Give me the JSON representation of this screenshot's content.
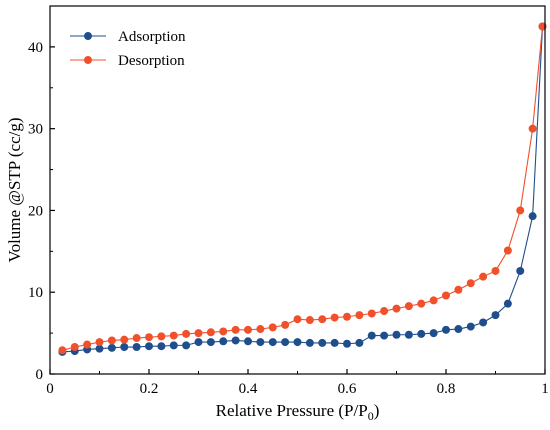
{
  "chart_data": {
    "type": "line",
    "title": "",
    "xlabel": "Relative Pressure (P/P",
    "xlabel_sub": "0",
    "xlabel_end": ")",
    "ylabel": "Volume @STP (cc/g)",
    "xlim": [
      0,
      1
    ],
    "ylim": [
      0,
      45
    ],
    "x_ticks": [
      0,
      0.2,
      0.4,
      0.6,
      0.8,
      1
    ],
    "x_tick_labels": [
      "0",
      "0.2",
      "0.4",
      "0.6",
      "0.8",
      "1"
    ],
    "y_ticks": [
      0,
      10,
      20,
      30,
      40
    ],
    "y_tick_labels": [
      "0",
      "10",
      "20",
      "30",
      "40"
    ],
    "grid": false,
    "legend_position": "top-left",
    "series": [
      {
        "name": "Adsorption",
        "color": "#1f4e8c",
        "points": [
          [
            0.025,
            2.7
          ],
          [
            0.05,
            2.8
          ],
          [
            0.075,
            3.0
          ],
          [
            0.1,
            3.1
          ],
          [
            0.125,
            3.2
          ],
          [
            0.15,
            3.3
          ],
          [
            0.175,
            3.3
          ],
          [
            0.2,
            3.4
          ],
          [
            0.225,
            3.4
          ],
          [
            0.25,
            3.5
          ],
          [
            0.275,
            3.5
          ],
          [
            0.3,
            3.9
          ],
          [
            0.325,
            3.9
          ],
          [
            0.35,
            4.0
          ],
          [
            0.375,
            4.1
          ],
          [
            0.4,
            4.0
          ],
          [
            0.425,
            3.9
          ],
          [
            0.45,
            3.9
          ],
          [
            0.475,
            3.9
          ],
          [
            0.5,
            3.9
          ],
          [
            0.525,
            3.8
          ],
          [
            0.55,
            3.8
          ],
          [
            0.575,
            3.8
          ],
          [
            0.6,
            3.7
          ],
          [
            0.625,
            3.8
          ],
          [
            0.65,
            4.7
          ],
          [
            0.675,
            4.7
          ],
          [
            0.7,
            4.8
          ],
          [
            0.725,
            4.8
          ],
          [
            0.75,
            4.9
          ],
          [
            0.775,
            5.0
          ],
          [
            0.8,
            5.4
          ],
          [
            0.825,
            5.5
          ],
          [
            0.85,
            5.8
          ],
          [
            0.875,
            6.3
          ],
          [
            0.9,
            7.2
          ],
          [
            0.925,
            8.6
          ],
          [
            0.95,
            12.6
          ],
          [
            0.975,
            19.3
          ],
          [
            0.995,
            42.5
          ]
        ]
      },
      {
        "name": "Desorption",
        "color": "#f0502a",
        "points": [
          [
            0.995,
            42.5
          ],
          [
            0.975,
            30.0
          ],
          [
            0.95,
            20.0
          ],
          [
            0.925,
            15.1
          ],
          [
            0.9,
            12.6
          ],
          [
            0.875,
            11.9
          ],
          [
            0.85,
            11.1
          ],
          [
            0.825,
            10.3
          ],
          [
            0.8,
            9.6
          ],
          [
            0.775,
            9.0
          ],
          [
            0.75,
            8.6
          ],
          [
            0.725,
            8.3
          ],
          [
            0.7,
            8.0
          ],
          [
            0.675,
            7.7
          ],
          [
            0.65,
            7.4
          ],
          [
            0.625,
            7.2
          ],
          [
            0.6,
            7.0
          ],
          [
            0.575,
            6.9
          ],
          [
            0.55,
            6.7
          ],
          [
            0.525,
            6.6
          ],
          [
            0.5,
            6.7
          ],
          [
            0.475,
            6.0
          ],
          [
            0.45,
            5.7
          ],
          [
            0.425,
            5.5
          ],
          [
            0.4,
            5.4
          ],
          [
            0.375,
            5.4
          ],
          [
            0.35,
            5.2
          ],
          [
            0.325,
            5.1
          ],
          [
            0.3,
            5.0
          ],
          [
            0.275,
            4.9
          ],
          [
            0.25,
            4.7
          ],
          [
            0.225,
            4.6
          ],
          [
            0.2,
            4.5
          ],
          [
            0.175,
            4.4
          ],
          [
            0.15,
            4.2
          ],
          [
            0.125,
            4.1
          ],
          [
            0.1,
            3.9
          ],
          [
            0.075,
            3.6
          ],
          [
            0.05,
            3.3
          ],
          [
            0.025,
            2.9
          ]
        ]
      }
    ]
  }
}
